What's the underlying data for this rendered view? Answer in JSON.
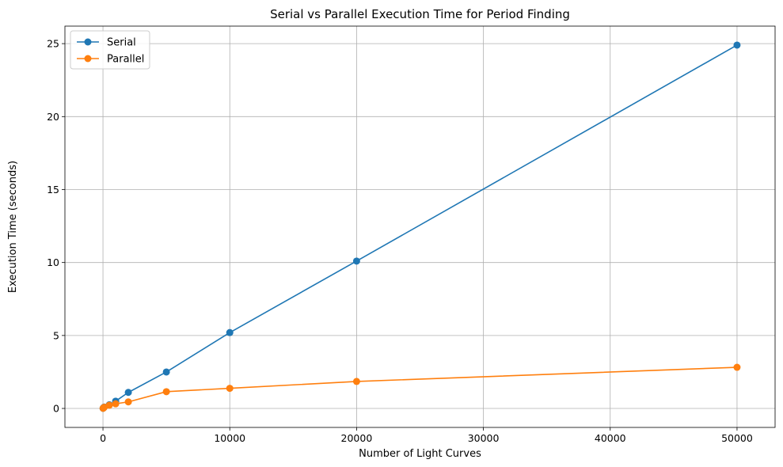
{
  "chart_data": {
    "type": "line",
    "title": "Serial vs Parallel Execution Time for Period Finding",
    "xlabel": "Number of Light Curves",
    "ylabel": "Execution Time (seconds)",
    "xlim": [
      -3000,
      53000
    ],
    "ylim": [
      -1.3,
      26.2
    ],
    "xticks": [
      0,
      10000,
      20000,
      30000,
      40000,
      50000
    ],
    "yticks": [
      0,
      5,
      10,
      15,
      20,
      25
    ],
    "grid": true,
    "legend_position": "top-left",
    "x": [
      10,
      50,
      100,
      500,
      1000,
      2000,
      5000,
      10000,
      20000,
      50000
    ],
    "series": [
      {
        "name": "Serial",
        "color": "#1f77b4",
        "marker": "circle",
        "values": [
          0.01,
          0.05,
          0.1,
          0.25,
          0.5,
          1.1,
          2.5,
          5.2,
          10.1,
          24.9
        ]
      },
      {
        "name": "Parallel",
        "color": "#ff7f0e",
        "marker": "circle",
        "values": [
          0.01,
          0.04,
          0.08,
          0.22,
          0.32,
          0.45,
          1.15,
          1.38,
          1.85,
          2.82
        ]
      }
    ]
  }
}
